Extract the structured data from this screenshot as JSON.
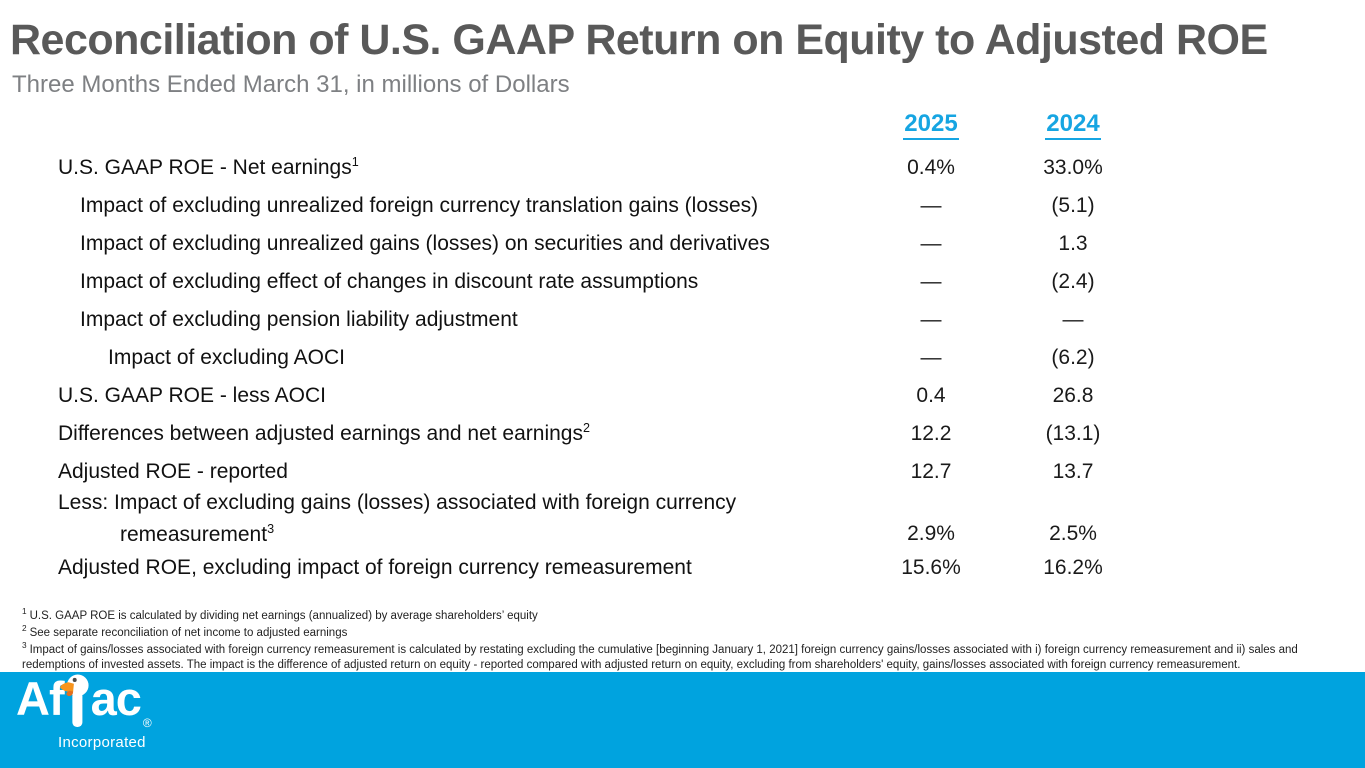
{
  "header": {
    "title": "Reconciliation of U.S. GAAP Return on Equity to Adjusted ROE",
    "subtitle": "Three Months Ended March 31, in millions of Dollars"
  },
  "table": {
    "columns": [
      "2025",
      "2024"
    ],
    "rows": [
      {
        "label": "U.S. GAAP ROE - Net earnings",
        "sup": "1",
        "indent": 0,
        "v2025": "0.4%",
        "v2024": "33.0%"
      },
      {
        "label": "Impact of excluding unrealized foreign currency translation gains (losses)",
        "indent": 1,
        "v2025": "—",
        "v2024": "(5.1)"
      },
      {
        "label": "Impact of excluding unrealized gains (losses) on securities and derivatives",
        "indent": 1,
        "v2025": "—",
        "v2024": "1.3"
      },
      {
        "label": "Impact of excluding effect of changes in discount rate assumptions",
        "indent": 1,
        "v2025": "—",
        "v2024": "(2.4)"
      },
      {
        "label": "Impact of excluding pension liability adjustment",
        "indent": 1,
        "v2025": "—",
        "v2024": "—"
      },
      {
        "label": "Impact of excluding AOCI",
        "indent": 2,
        "v2025": "—",
        "v2024": "(6.2)"
      },
      {
        "label": "U.S. GAAP ROE - less AOCI",
        "indent": 0,
        "v2025": "0.4",
        "v2024": "26.8"
      },
      {
        "label": "Differences between adjusted earnings and net earnings",
        "sup": "2",
        "indent": 0,
        "v2025": "12.2",
        "v2024": "(13.1)"
      },
      {
        "label": "Adjusted ROE - reported",
        "indent": 0,
        "v2025": "12.7",
        "v2024": "13.7"
      },
      {
        "label": "Less: Impact of excluding gains (losses) associated with foreign currency",
        "label_line2": "remeasurement",
        "sup": "3",
        "indent": 0,
        "v2025": "2.9%",
        "v2024": "2.5%"
      },
      {
        "label": "Adjusted ROE, excluding impact of foreign currency remeasurement",
        "indent": 0,
        "v2025": "15.6%",
        "v2024": "16.2%"
      }
    ]
  },
  "footnotes": [
    {
      "sup": "1",
      "text": "U.S. GAAP ROE is calculated by dividing net earnings (annualized) by average shareholders’ equity"
    },
    {
      "sup": "2",
      "text": "See separate reconciliation of net income to adjusted earnings"
    },
    {
      "sup": "3",
      "text": "Impact of gains/losses associated with foreign currency remeasurement is calculated by restating excluding the cumulative [beginning January 1, 2021] foreign currency gains/losses associated with i) foreign currency remeasurement and ii) sales and redemptions of invested assets. The impact is the difference of adjusted return on equity - reported compared with adjusted return on equity, excluding from shareholders' equity, gains/losses associated with foreign currency remeasurement."
    }
  ],
  "footer": {
    "logo_left": "Af",
    "logo_right": "ac",
    "logo_registered": "®",
    "logo_subtext": "Incorporated",
    "duck_icon": "aflac-duck-icon"
  },
  "colors": {
    "accent_blue": "#00a3df",
    "year_link_blue": "#16a5e2",
    "title_gray": "#595959",
    "subtitle_gray": "#7e8083",
    "duck_beak_orange": "#f7941d",
    "duck_beak_shadow": "#e06f1f"
  }
}
